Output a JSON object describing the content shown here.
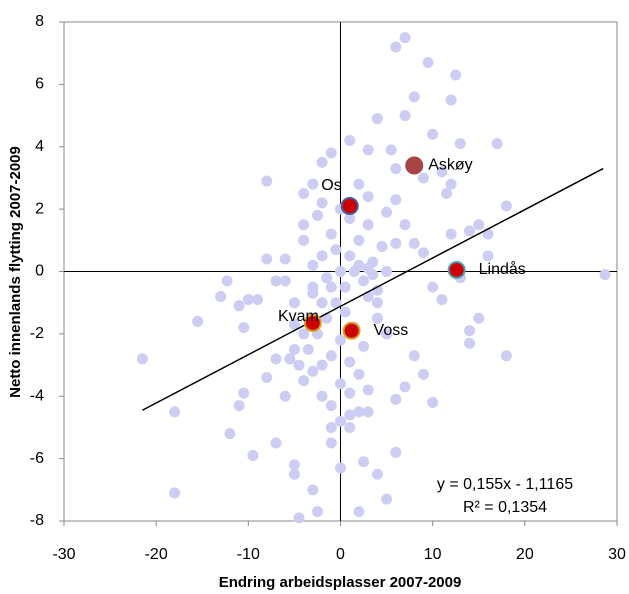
{
  "chart_data": {
    "type": "scatter",
    "x_label": "Endring arbeidsplasser 2007-2009",
    "y_label": "Netto innenlands flytting 2007-2009",
    "xlim": [
      -30,
      30
    ],
    "xticks": [
      -30,
      -20,
      -10,
      0,
      10,
      20,
      30
    ],
    "ylim": [
      -8,
      8
    ],
    "yticks": [
      -8,
      -6,
      -4,
      -2,
      0,
      2,
      4,
      6,
      8
    ],
    "background": {
      "color": "#cdcdf4",
      "x": [
        -5,
        -4,
        -3,
        -2,
        -1,
        0,
        1,
        2,
        3,
        4,
        5,
        -4.5,
        -3.5,
        -2.5,
        -1.5,
        -0.5,
        0.5,
        1.5,
        2.5,
        3.5,
        4.5,
        -5.5,
        -6,
        -3,
        -2,
        -1,
        0,
        1,
        2,
        3,
        4,
        5,
        6,
        -4,
        -3,
        -2,
        -1,
        0,
        1,
        2,
        3,
        -5,
        -4,
        -2.5,
        -1.5,
        -0.5,
        0.5,
        1.5,
        2.5,
        3.5,
        -3,
        -2,
        -1,
        0,
        1,
        2,
        -4,
        -3,
        -1,
        0,
        1,
        3,
        4,
        -6,
        -5,
        -2,
        2,
        5,
        7,
        8,
        6,
        7,
        9.5,
        12.5,
        8,
        12,
        4,
        7,
        10,
        17,
        13,
        5.5,
        1,
        3,
        -1,
        -2,
        6,
        11,
        9,
        12,
        -3,
        -8,
        -4,
        3,
        6,
        11.5,
        15,
        14,
        16,
        18,
        12,
        -21.5,
        -18,
        -18,
        -15.5,
        -13,
        -12.3,
        -10,
        -11,
        -10.5,
        -11,
        -10.5,
        -9.5,
        -12,
        -8,
        -7,
        -6,
        -7,
        -4.5,
        -2.5,
        -3,
        -5,
        -5,
        -1,
        0,
        2.5,
        4,
        5,
        2,
        6,
        1,
        3,
        6,
        7,
        9,
        10,
        8,
        14,
        15,
        14,
        18,
        28.7,
        11,
        10,
        13,
        16,
        9,
        -8,
        -7,
        -9
      ],
      "y": [
        -2.5,
        -2,
        -1.5,
        -1,
        -0.5,
        0,
        0.5,
        1,
        1.5,
        -1,
        0,
        -3,
        -2.5,
        -2,
        -1.5,
        -1,
        -0.5,
        0,
        -0.3,
        0.3,
        0.8,
        -2.8,
        0.4,
        -0.5,
        0.5,
        1.2,
        2,
        1.7,
        0.2,
        -0.8,
        -1.5,
        -2,
        0.9,
        -3.5,
        -3.2,
        -3,
        -2.7,
        -2.2,
        -2.9,
        -3.3,
        -3.8,
        -1,
        1.5,
        1.8,
        -0.2,
        0.7,
        -1.3,
        -1.8,
        -2.4,
        -0.1,
        0.2,
        -4,
        -4.3,
        -3.6,
        -3.9,
        -4.5,
        1,
        -0.7,
        -5,
        -4.8,
        -4.6,
        0.1,
        -0.6,
        -0.3,
        -1.7,
        2.2,
        2.8,
        1.9,
        1.5,
        0.9,
        7.2,
        7.5,
        6.7,
        6.3,
        5.6,
        5.5,
        4.9,
        5,
        4.4,
        4.1,
        4.1,
        3.9,
        4.2,
        3.9,
        3.8,
        3.5,
        3.3,
        3.2,
        3,
        2.8,
        2.8,
        2.9,
        2.5,
        2.4,
        2.3,
        2.5,
        1.5,
        1.3,
        1.2,
        2.1,
        1.2,
        -2.8,
        -4.5,
        -7.1,
        -1.6,
        -0.8,
        -0.3,
        -0.9,
        -1.1,
        -1.8,
        -4.3,
        -3.9,
        -5.9,
        -5.2,
        -3.4,
        -2.8,
        -4,
        -5.5,
        -7.9,
        -7.7,
        -7,
        -6.2,
        -6.5,
        -5.5,
        -6.3,
        -6.1,
        -6.5,
        -7.3,
        -7.7,
        -5.8,
        -5,
        -4.5,
        -4.1,
        -3.7,
        -3.3,
        -4.2,
        -2.7,
        -1.9,
        -1.5,
        -2.3,
        -2.7,
        -0.1,
        -0.9,
        -0.5,
        -0.2,
        0.5,
        0.6,
        0.4,
        -0.3,
        -0.9
      ]
    },
    "highlights": [
      {
        "label": "Os",
        "x": 1,
        "y": 2.1,
        "color": "#cc0000",
        "edge": "#4a5a9a"
      },
      {
        "label": "Askøy",
        "x": 8,
        "y": 3.4,
        "color": "#a84444",
        "edge": "#a84444"
      },
      {
        "label": "Lindås",
        "x": 12.6,
        "y": 0.05,
        "color": "#cc0000",
        "edge": "#4aa0b8"
      },
      {
        "label": "Kvam",
        "x": -3,
        "y": -1.65,
        "color": "#cc0000",
        "edge": "#d8a020"
      },
      {
        "label": "Voss",
        "x": 1.2,
        "y": -1.9,
        "color": "#cc0000",
        "edge": "#d8a020"
      }
    ],
    "trendline": {
      "slope": 0.155,
      "intercept": -1.1165,
      "x_range": [
        -21.5,
        28.5
      ],
      "color": "#000000"
    },
    "equation": "y = 0,155x - 1,1165",
    "r_squared": "R² = 0,1354"
  }
}
